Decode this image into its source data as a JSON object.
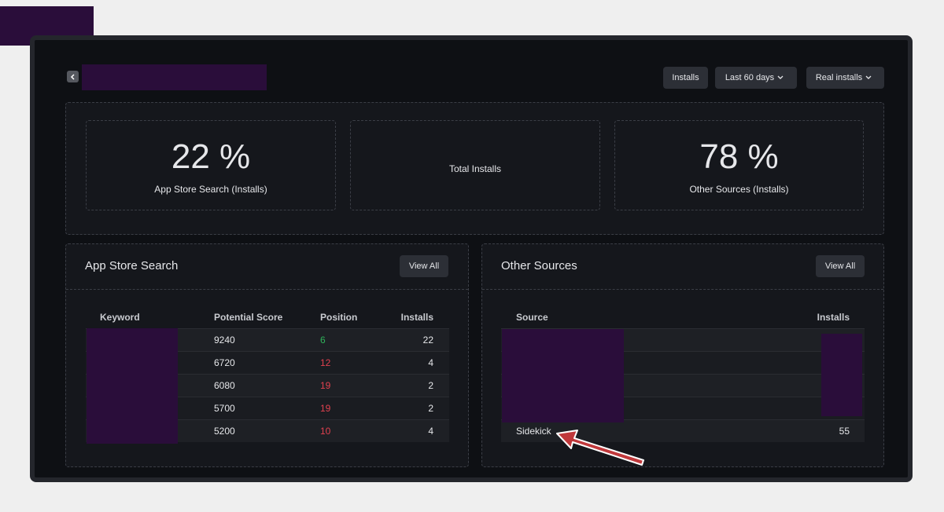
{
  "header": {
    "buttons": [
      "Installs",
      "Last 60 days",
      "Real installs"
    ]
  },
  "stats": [
    {
      "value": "22 %",
      "label": "App Store Search (Installs)"
    },
    {
      "label": "Total Installs"
    },
    {
      "value": "78 %",
      "label": "Other Sources (Installs)"
    }
  ],
  "app_store_search": {
    "title": "App Store Search",
    "button": "View All",
    "columns": [
      "Keyword",
      "Potential Score",
      "Position",
      "Installs"
    ],
    "rows": [
      {
        "score": 9240,
        "position": 6,
        "position_color": "#2fb35a",
        "installs": 22
      },
      {
        "score": 6720,
        "position": 12,
        "position_color": "#e0414f",
        "installs": 4
      },
      {
        "score": 6080,
        "position": 19,
        "position_color": "#e0414f",
        "installs": 2
      },
      {
        "score": 5700,
        "position": 19,
        "position_color": "#e0414f",
        "installs": 2
      },
      {
        "score": 5200,
        "position": 10,
        "position_color": "#e0414f",
        "installs": 4
      }
    ]
  },
  "other_sources": {
    "title": "Other Sources",
    "button": "View All",
    "columns": [
      "Source",
      "Installs"
    ],
    "rows": [
      {
        "source": "Sidekick",
        "installs": 55
      }
    ]
  }
}
